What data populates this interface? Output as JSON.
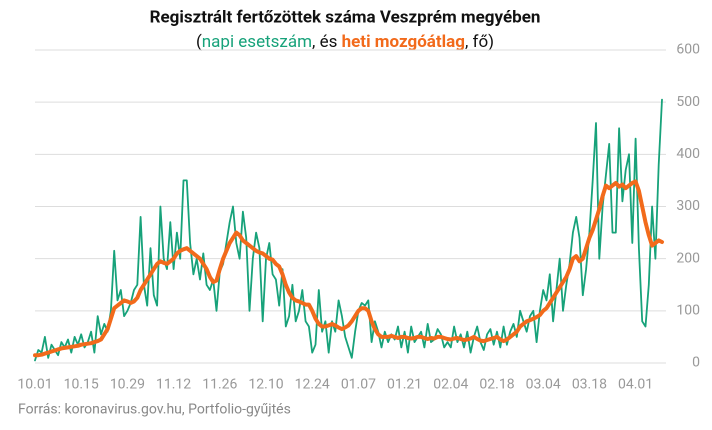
{
  "chart_data": {
    "type": "line",
    "title": "Regisztrált fertőzöttek száma Veszprém megyében",
    "subtitle_parts": [
      "(",
      ", és ",
      ", fő)"
    ],
    "source": "Forrás: koronavirus.gov.hu, Portfolio-gyűjtés",
    "categories": [
      "10.01",
      null,
      null,
      null,
      null,
      null,
      null,
      null,
      null,
      null,
      null,
      null,
      null,
      null,
      "10.15",
      null,
      null,
      null,
      null,
      null,
      null,
      null,
      null,
      null,
      null,
      null,
      null,
      null,
      "10.29",
      null,
      null,
      null,
      null,
      null,
      null,
      null,
      null,
      null,
      null,
      null,
      null,
      null,
      "11.12",
      null,
      null,
      null,
      null,
      null,
      null,
      null,
      null,
      null,
      null,
      null,
      null,
      null,
      "11.26",
      null,
      null,
      null,
      null,
      null,
      null,
      null,
      null,
      null,
      null,
      null,
      null,
      null,
      "12.10",
      null,
      null,
      null,
      null,
      null,
      null,
      null,
      null,
      null,
      null,
      null,
      null,
      null,
      "12.24",
      null,
      null,
      null,
      null,
      null,
      null,
      null,
      null,
      null,
      null,
      null,
      null,
      null,
      "01.07",
      null,
      null,
      null,
      null,
      null,
      null,
      null,
      null,
      null,
      null,
      null,
      null,
      null,
      "01.21",
      null,
      null,
      null,
      null,
      null,
      null,
      null,
      null,
      null,
      null,
      null,
      null,
      null,
      "02.04",
      null,
      null,
      null,
      null,
      null,
      null,
      null,
      null,
      null,
      null,
      null,
      null,
      null,
      "02.18",
      null,
      null,
      null,
      null,
      null,
      null,
      null,
      null,
      null,
      null,
      null,
      null,
      null,
      "03.04",
      null,
      null,
      null,
      null,
      null,
      null,
      null,
      null,
      null,
      null,
      null,
      null,
      null,
      "03.18",
      null,
      null,
      null,
      null,
      null,
      null,
      null,
      null,
      null,
      null,
      null,
      null,
      null,
      "04.01",
      null,
      null,
      null,
      null,
      null,
      null,
      null,
      null
    ],
    "series": [
      {
        "name": "napi esetszám",
        "color": "#17a27a",
        "values": [
          5,
          25,
          20,
          50,
          10,
          35,
          25,
          15,
          40,
          30,
          45,
          20,
          50,
          35,
          55,
          30,
          40,
          60,
          20,
          90,
          55,
          75,
          60,
          100,
          215,
          120,
          140,
          90,
          100,
          115,
          140,
          150,
          280,
          150,
          110,
          220,
          130,
          110,
          300,
          200,
          180,
          270,
          180,
          250,
          200,
          350,
          350,
          230,
          170,
          200,
          160,
          210,
          150,
          140,
          160,
          100,
          175,
          190,
          230,
          270,
          300,
          230,
          200,
          290,
          240,
          100,
          200,
          250,
          220,
          80,
          200,
          230,
          170,
          160,
          110,
          180,
          70,
          90,
          150,
          80,
          100,
          140,
          80,
          70,
          20,
          35,
          140,
          60,
          80,
          20,
          80,
          60,
          120,
          90,
          50,
          30,
          10,
          60,
          100,
          115,
          110,
          120,
          40,
          80,
          60,
          30,
          60,
          40,
          55,
          45,
          70,
          30,
          60,
          20,
          70,
          40,
          50,
          60,
          30,
          75,
          40,
          45,
          65,
          55,
          30,
          40,
          30,
          70,
          40,
          55,
          30,
          60,
          20,
          50,
          70,
          40,
          25,
          55,
          65,
          35,
          60,
          30,
          70,
          35,
          60,
          75,
          50,
          100,
          80,
          60,
          90,
          100,
          40,
          100,
          140,
          120,
          170,
          80,
          140,
          200,
          100,
          150,
          190,
          250,
          280,
          240,
          130,
          180,
          250,
          350,
          460,
          200,
          300,
          360,
          420,
          250,
          250,
          450,
          310,
          370,
          400,
          230,
          430,
          220,
          80,
          70,
          150,
          300,
          200,
          380,
          505
        ]
      },
      {
        "name": "heti mozgóátlag",
        "color": "#f26a1b",
        "values": [
          15,
          15,
          16,
          18,
          20,
          22,
          24,
          26,
          28,
          29,
          30,
          31,
          32,
          33,
          35,
          36,
          37,
          38,
          40,
          42,
          45,
          55,
          65,
          85,
          105,
          110,
          115,
          120,
          118,
          115,
          118,
          125,
          140,
          150,
          160,
          170,
          180,
          190,
          195,
          192,
          190,
          195,
          200,
          210,
          215,
          218,
          220,
          215,
          210,
          205,
          200,
          190,
          180,
          165,
          155,
          158,
          180,
          200,
          215,
          230,
          240,
          250,
          245,
          235,
          230,
          225,
          220,
          215,
          212,
          210,
          205,
          200,
          198,
          190,
          185,
          170,
          150,
          135,
          125,
          120,
          118,
          115,
          112,
          112,
          100,
          85,
          75,
          70,
          70,
          72,
          75,
          72,
          68,
          65,
          68,
          72,
          80,
          90,
          100,
          105,
          105,
          100,
          80,
          65,
          55,
          50,
          50,
          50,
          52,
          50,
          48,
          50,
          50,
          48,
          47,
          48,
          50,
          50,
          48,
          46,
          48,
          47,
          50,
          50,
          48,
          46,
          45,
          47,
          48,
          46,
          44,
          45,
          47,
          50,
          46,
          43,
          42,
          44,
          46,
          48,
          50,
          45,
          42,
          45,
          50,
          55,
          60,
          70,
          75,
          80,
          82,
          85,
          88,
          92,
          100,
          105,
          115,
          125,
          135,
          145,
          155,
          165,
          180,
          200,
          205,
          195,
          200,
          220,
          240,
          255,
          275,
          295,
          320,
          340,
          335,
          340,
          345,
          338,
          342,
          335,
          340,
          345,
          348,
          330,
          300,
          270,
          245,
          225,
          230,
          235,
          232
        ]
      }
    ],
    "ylim": [
      0,
      600
    ],
    "yticks": [
      0,
      100,
      200,
      300,
      400,
      500,
      600
    ],
    "grid": true,
    "y_axis_side": "right"
  }
}
